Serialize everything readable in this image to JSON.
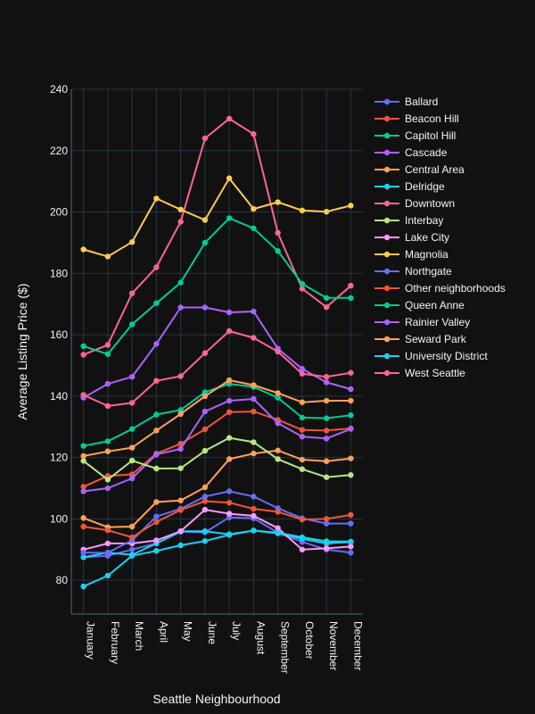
{
  "chart_data": {
    "type": "line",
    "xlabel": "Seattle Neighbourhood",
    "ylabel": "Average Listing Price ($)",
    "ylim": [
      69,
      240
    ],
    "yticks": [
      80,
      100,
      120,
      140,
      160,
      180,
      200,
      220,
      240
    ],
    "grid": true,
    "legend_position": "right",
    "background": "#111111",
    "categories": [
      "January",
      "February",
      "March",
      "April",
      "May",
      "June",
      "July",
      "August",
      "September",
      "October",
      "November",
      "December"
    ],
    "series": [
      {
        "name": "Ballard",
        "color": "#636efa",
        "values": [
          87.5,
          88,
          90,
          92,
          95.8,
          95.6,
          100.5,
          100.2,
          95.5,
          92.5,
          90,
          89
        ]
      },
      {
        "name": "Beacon Hill",
        "color": "#ef553b",
        "values": [
          110.5,
          114,
          114.5,
          121.3,
          124.5,
          129.2,
          134.8,
          135,
          132.3,
          129,
          128.8,
          129.5
        ]
      },
      {
        "name": "Capitol Hill",
        "color": "#00cc96",
        "values": [
          123.8,
          125.3,
          129.3,
          134,
          135.5,
          141.3,
          144,
          143,
          139.5,
          133,
          132.8,
          133.8
        ]
      },
      {
        "name": "Cascade",
        "color": "#ab63fa",
        "values": [
          109,
          110,
          113.2,
          121,
          122.8,
          135,
          138.5,
          139.1,
          131.2,
          126.8,
          126.2,
          129.3
        ]
      },
      {
        "name": "Central Area",
        "color": "#ffa15a",
        "values": [
          100.3,
          97.3,
          97.5,
          105.5,
          106,
          110.3,
          119.5,
          121.3,
          122.3,
          119.3,
          118.8,
          119.7
        ]
      },
      {
        "name": "Delridge",
        "color": "#19d3f3",
        "values": [
          87.5,
          89,
          88.3,
          92,
          96,
          96,
          95,
          96.2,
          95.3,
          93.5,
          92,
          92.5
        ]
      },
      {
        "name": "Downtown",
        "color": "#ff6692",
        "values": [
          153.5,
          156.7,
          173.5,
          182,
          196.8,
          224,
          230.4,
          225.4,
          193.2,
          175,
          169,
          176
        ]
      },
      {
        "name": "Interbay",
        "color": "#b6e880",
        "values": [
          118.9,
          112.8,
          119,
          116.4,
          116.5,
          122.2,
          126.4,
          125,
          119.5,
          116.2,
          113.6,
          114.3
        ]
      },
      {
        "name": "Lake City",
        "color": "#ff97ff",
        "values": [
          90,
          92,
          92,
          93,
          96,
          103,
          101.7,
          101,
          97,
          90,
          90.4,
          91
        ]
      },
      {
        "name": "Magnolia",
        "color": "#fecb52",
        "values": [
          187.8,
          185.5,
          190.2,
          204.4,
          200.8,
          197.4,
          211,
          201,
          203.2,
          200.5,
          200.1,
          202.1
        ]
      },
      {
        "name": "Northgate",
        "color": "#636efa",
        "values": [
          89,
          89,
          93,
          100.8,
          103.3,
          107.3,
          109,
          107.3,
          103.5,
          100.2,
          98.5,
          98.5
        ]
      },
      {
        "name": "Other neighborhoods",
        "color": "#ef553b",
        "values": [
          97.5,
          96.3,
          94,
          99,
          102.9,
          105.8,
          105.3,
          103.3,
          102.3,
          99.8,
          100,
          101.3
        ]
      },
      {
        "name": "Queen Anne",
        "color": "#00cc96",
        "values": [
          156.3,
          153.7,
          163.4,
          170.3,
          177,
          190,
          198,
          194.7,
          187.3,
          176.6,
          172,
          172
        ]
      },
      {
        "name": "Rainier Valley",
        "color": "#ab63fa",
        "values": [
          139.5,
          144,
          146.3,
          157,
          168.9,
          168.9,
          167.3,
          167.6,
          155.5,
          148.9,
          144.5,
          142.3
        ]
      },
      {
        "name": "Seward Park",
        "color": "#ffa15a",
        "values": [
          120.5,
          122,
          123.2,
          128.8,
          134.2,
          140,
          145.2,
          143.6,
          141,
          138,
          138.5,
          138.5
        ]
      },
      {
        "name": "University District",
        "color": "#19d3f3",
        "values": [
          78,
          81.5,
          88,
          89.6,
          91.4,
          92.8,
          94.8,
          96.2,
          95.5,
          94,
          92.7,
          92.6
        ]
      },
      {
        "name": "West Seattle",
        "color": "#ff6692",
        "values": [
          140.4,
          136.8,
          137.8,
          145,
          146.5,
          154,
          161.2,
          159,
          154.5,
          147.3,
          146.3,
          147.6
        ]
      }
    ]
  }
}
